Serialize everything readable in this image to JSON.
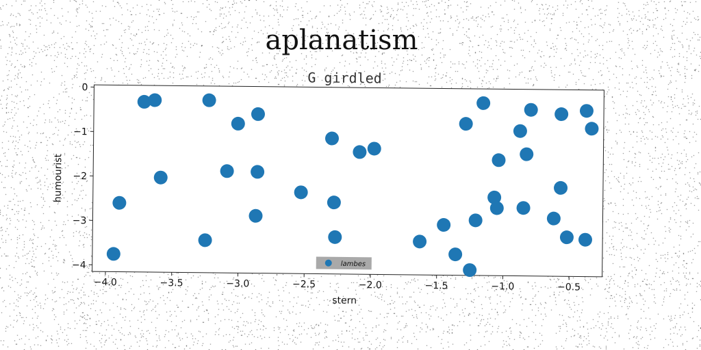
{
  "figure": {
    "suptitle": "aplanatism"
  },
  "chart_data": {
    "type": "scatter",
    "title": "G girdled",
    "xlabel": "stern",
    "ylabel": "humourist",
    "xlim": [
      -4.1,
      -0.25
    ],
    "ylim": [
      -4.15,
      0.05
    ],
    "x_ticks": [
      -4.0,
      -3.5,
      -3.0,
      -2.5,
      -2.0,
      -1.5,
      -1.0,
      -0.5
    ],
    "x_tick_labels": [
      "−4.0",
      "−3.5",
      "−3.0",
      "−2.5",
      "−2.0",
      "−1.5",
      "−1.0",
      "−0.5"
    ],
    "y_ticks": [
      0,
      -1,
      -2,
      -3,
      -4
    ],
    "y_tick_labels": [
      "0",
      "−1",
      "−2",
      "−3",
      "−4"
    ],
    "grid": false,
    "legend_position": "bottom-center",
    "series": [
      {
        "name": "lambes",
        "color": "#1f77b4",
        "points": [
          {
            "x": -3.72,
            "y": -0.32
          },
          {
            "x": -3.64,
            "y": -0.28
          },
          {
            "x": -3.23,
            "y": -0.27
          },
          {
            "x": -3.01,
            "y": -0.79
          },
          {
            "x": -2.86,
            "y": -0.57
          },
          {
            "x": -2.3,
            "y": -1.1
          },
          {
            "x": -2.09,
            "y": -1.4
          },
          {
            "x": -1.98,
            "y": -1.32
          },
          {
            "x": -1.16,
            "y": -0.27
          },
          {
            "x": -1.29,
            "y": -0.74
          },
          {
            "x": -0.8,
            "y": -0.41
          },
          {
            "x": -0.88,
            "y": -0.89
          },
          {
            "x": -0.57,
            "y": -0.5
          },
          {
            "x": -0.38,
            "y": -0.42
          },
          {
            "x": -0.34,
            "y": -0.82
          },
          {
            "x": -3.59,
            "y": -2.02
          },
          {
            "x": -3.9,
            "y": -2.6
          },
          {
            "x": -3.09,
            "y": -1.86
          },
          {
            "x": -2.86,
            "y": -1.87
          },
          {
            "x": -2.53,
            "y": -2.32
          },
          {
            "x": -2.28,
            "y": -2.54
          },
          {
            "x": -2.87,
            "y": -2.86
          },
          {
            "x": -1.04,
            "y": -1.55
          },
          {
            "x": -0.83,
            "y": -1.41
          },
          {
            "x": -0.57,
            "y": -2.16
          },
          {
            "x": -1.07,
            "y": -2.39
          },
          {
            "x": -1.05,
            "y": -2.63
          },
          {
            "x": -0.85,
            "y": -2.62
          },
          {
            "x": -0.62,
            "y": -2.85
          },
          {
            "x": -1.21,
            "y": -2.91
          },
          {
            "x": -1.45,
            "y": -3.02
          },
          {
            "x": -0.52,
            "y": -3.27
          },
          {
            "x": -0.38,
            "y": -3.32
          },
          {
            "x": -3.94,
            "y": -3.75
          },
          {
            "x": -3.25,
            "y": -3.42
          },
          {
            "x": -2.27,
            "y": -3.32
          },
          {
            "x": -1.63,
            "y": -3.4
          },
          {
            "x": -1.36,
            "y": -3.68
          },
          {
            "x": -1.25,
            "y": -4.03
          }
        ]
      }
    ]
  }
}
